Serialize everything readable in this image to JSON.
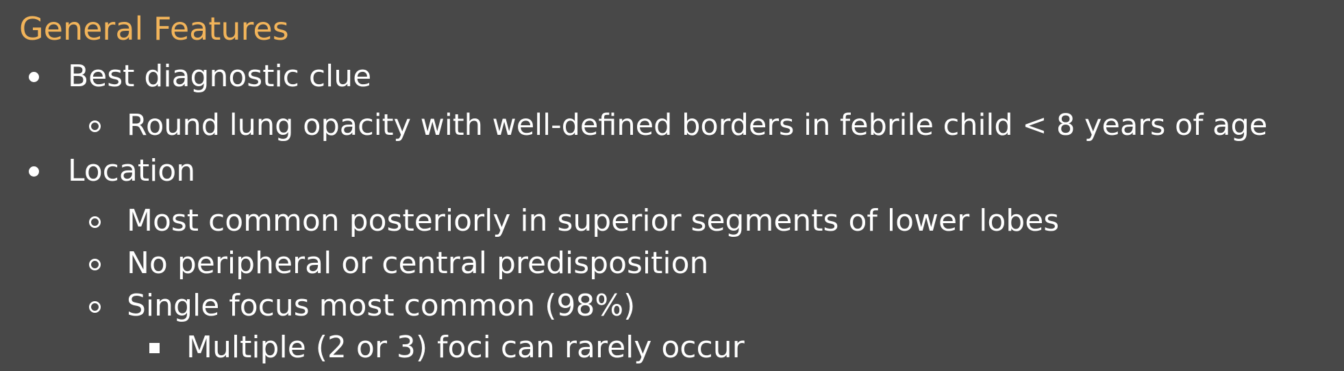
{
  "slide": {
    "title": "General Features",
    "bullets": [
      {
        "text": "Best diagnostic clue",
        "children": [
          {
            "text": "Round lung opacity with well-defined borders in febrile child < 8 years of age"
          }
        ]
      },
      {
        "text": "Location",
        "children": [
          {
            "text": "Most common posteriorly in superior segments of lower lobes"
          },
          {
            "text": "No peripheral or central predisposition"
          },
          {
            "text": "Single focus most common (98%)",
            "children": [
              {
                "text": "Multiple (2 or 3) foci can rarely occur"
              }
            ]
          }
        ]
      }
    ]
  }
}
